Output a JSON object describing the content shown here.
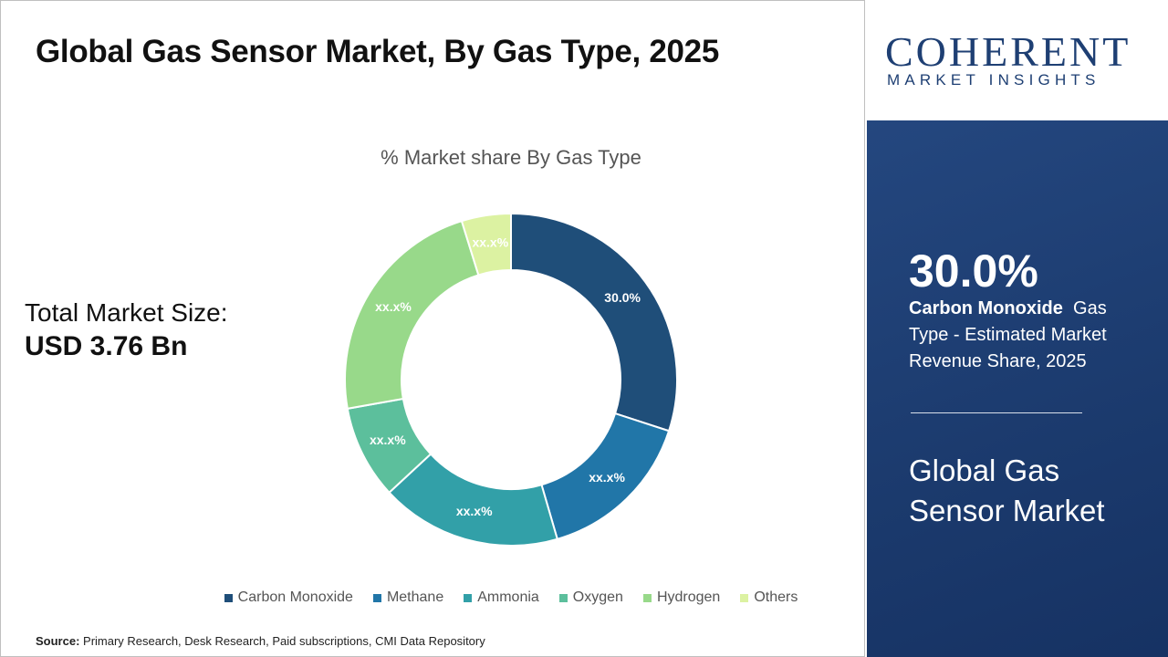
{
  "header": {
    "title": "Global Gas Sensor Market, By Gas Type, 2025"
  },
  "market_size": {
    "label": "Total Market Size:",
    "value": "USD 3.76 Bn"
  },
  "chart_data": {
    "type": "donut",
    "title": "% Market share By Gas Type",
    "categories": [
      "Carbon Monoxide",
      "Methane",
      "Ammonia",
      "Oxygen",
      "Hydrogen",
      "Others"
    ],
    "values": [
      30.0,
      15.5,
      17.6,
      9.1,
      23.0,
      4.8
    ],
    "value_labels": [
      "30.0%",
      "xx.x%",
      "xx.x%",
      "xx.x%",
      "xx.x%",
      "xx.x%"
    ],
    "colors": [
      "#1f4e79",
      "#2176a8",
      "#32a0a8",
      "#5cbf9c",
      "#98d98a",
      "#dcf2a2"
    ],
    "legend": "bottom"
  },
  "source": {
    "label": "Source:",
    "text": "Primary Research, Desk Research, Paid subscriptions, CMI Data Repository"
  },
  "logo": {
    "name": "COHERENT",
    "tagline": "MARKET INSIGHTS"
  },
  "highlight": {
    "value": "30.0%",
    "segment": "Carbon Monoxide",
    "description": "Gas Type - Estimated Market Revenue Share, 2025",
    "market": "Global Gas Sensor Market"
  }
}
